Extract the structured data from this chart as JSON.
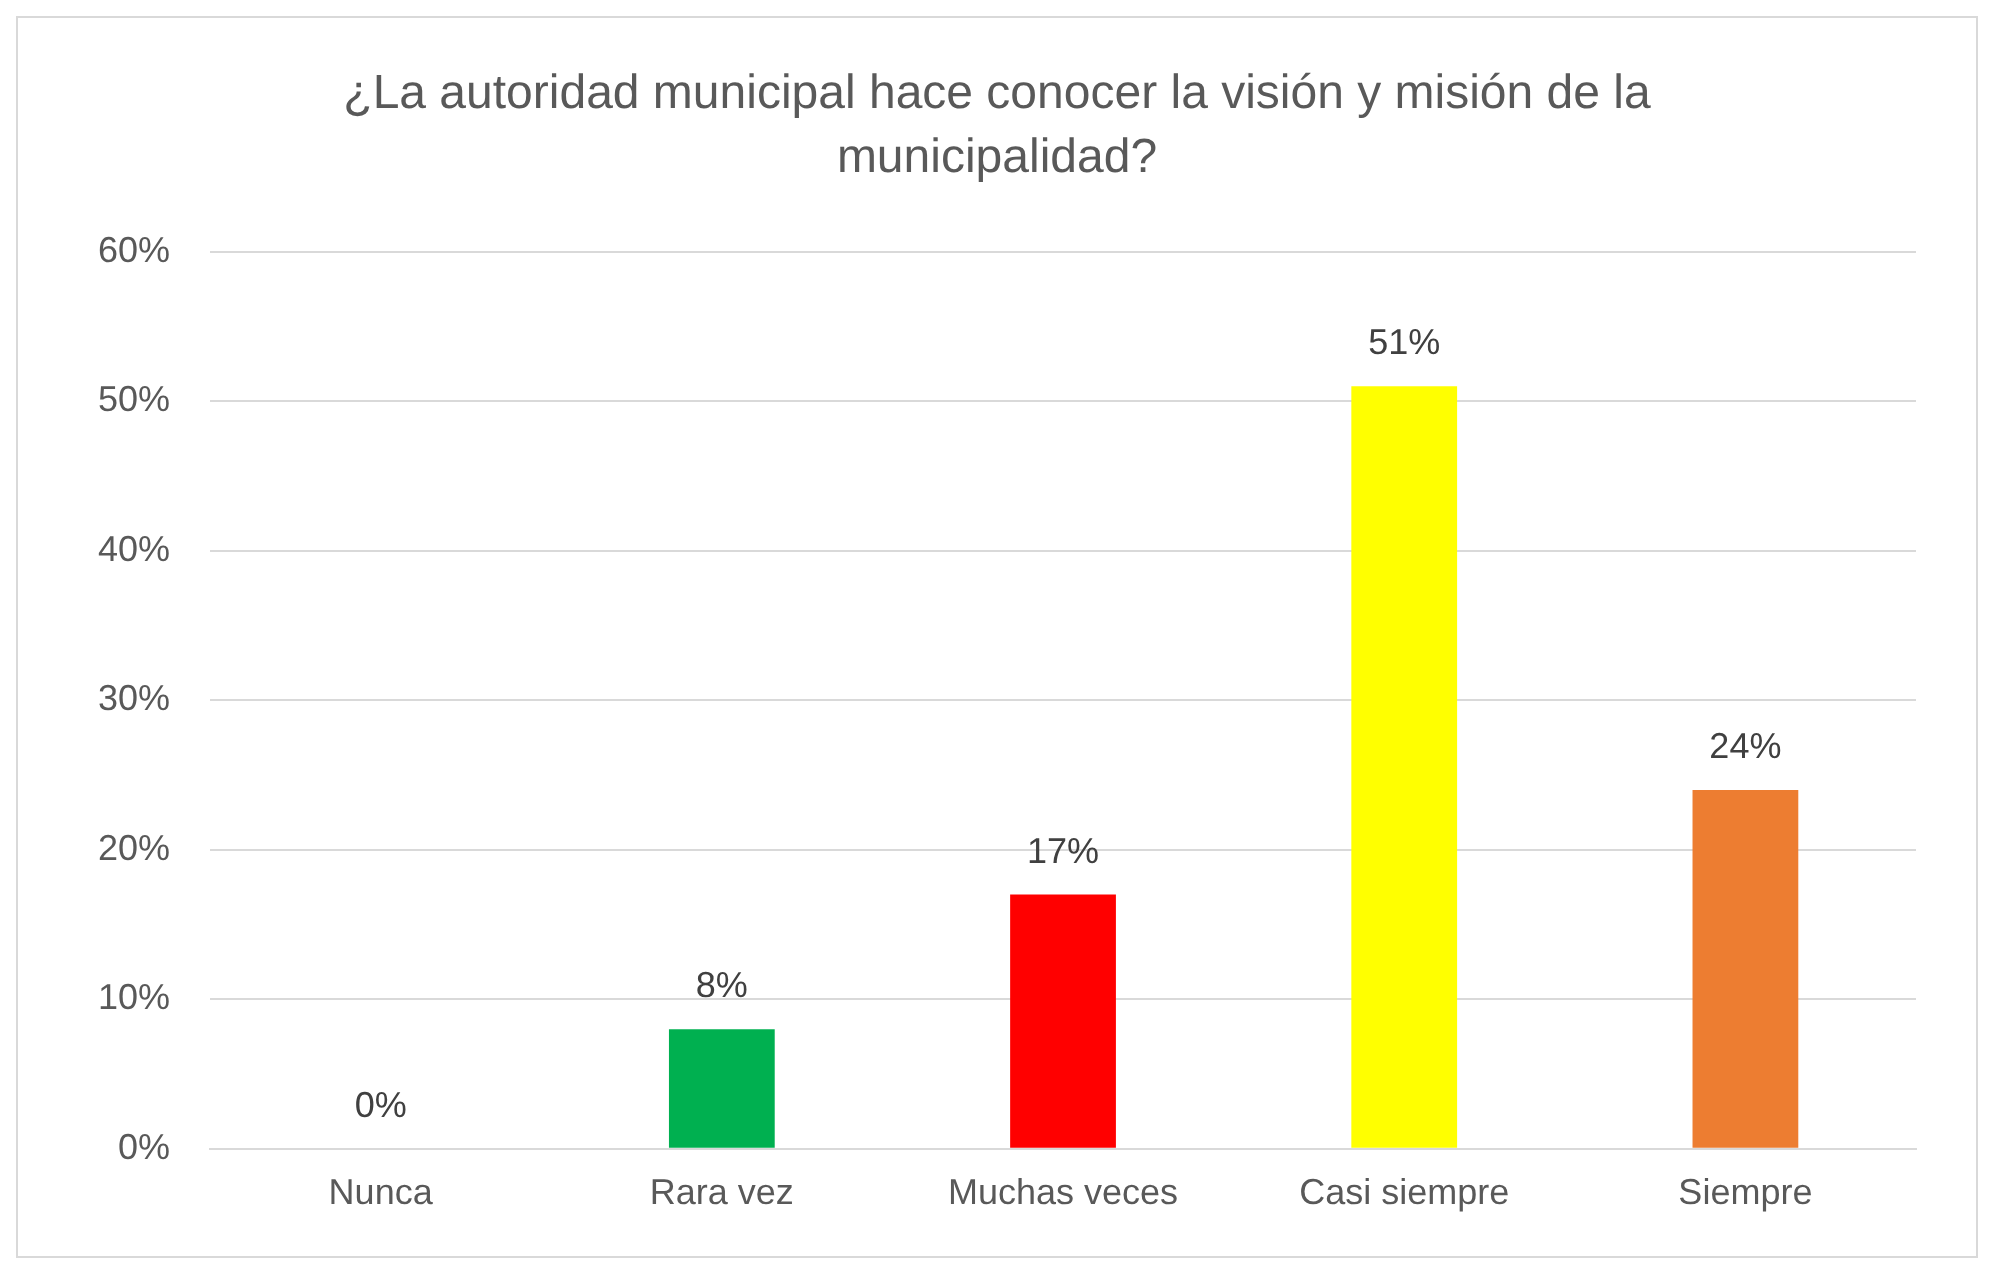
{
  "chart_data": {
    "type": "bar",
    "title": "¿La autoridad municipal hace conocer la visión y misión de la municipalidad?",
    "categories": [
      "Nunca",
      "Rara vez",
      "Muchas veces",
      "Casi siempre",
      "Siempre"
    ],
    "values": [
      0,
      8,
      17,
      51,
      24
    ],
    "colors": [
      "#4472c4",
      "#00b050",
      "#ff0000",
      "#ffff00",
      "#ed7d31"
    ],
    "value_labels": [
      "0%",
      "8%",
      "17%",
      "51%",
      "24%"
    ],
    "ylim": [
      0,
      60
    ],
    "yticks": [
      {
        "value": 0,
        "label": "0%"
      },
      {
        "value": 10,
        "label": "10%"
      },
      {
        "value": 20,
        "label": "20%"
      },
      {
        "value": 30,
        "label": "30%"
      },
      {
        "value": 40,
        "label": "40%"
      },
      {
        "value": 50,
        "label": "50%"
      },
      {
        "value": 60,
        "label": "60%"
      }
    ],
    "grid": "y",
    "legend": false
  }
}
